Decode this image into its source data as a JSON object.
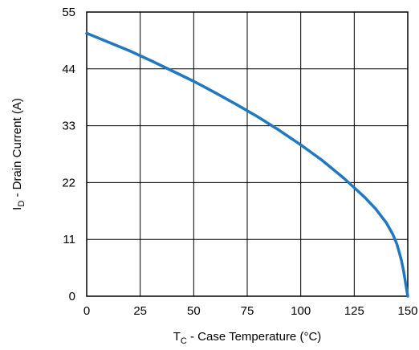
{
  "chart_data": {
    "type": "line",
    "x_axis": {
      "label_main": "T",
      "label_sub": "C",
      "label_rest": " - Case Temperature (°C)",
      "range": [
        0,
        150
      ],
      "ticks": [
        0,
        25,
        50,
        75,
        100,
        125,
        150
      ]
    },
    "y_axis": {
      "label_main": "I",
      "label_sub": "D",
      "label_rest": " - Drain Current (A)",
      "range": [
        0,
        55
      ],
      "ticks": [
        0,
        11,
        22,
        33,
        44,
        55
      ]
    },
    "grid": true,
    "series": [
      {
        "color": "#1f78c1",
        "x": [
          0,
          10,
          20,
          30,
          40,
          50,
          60,
          70,
          80,
          90,
          100,
          110,
          120,
          130,
          135,
          140,
          143,
          145,
          147,
          148,
          149,
          150
        ],
        "y": [
          50.9,
          49.2,
          47.5,
          45.6,
          43.6,
          41.6,
          39.4,
          37.1,
          34.7,
          32.1,
          29.3,
          26.3,
          22.9,
          19.1,
          16.9,
          14.2,
          12.0,
          10.0,
          7.0,
          5.0,
          2.5,
          0
        ]
      }
    ]
  }
}
